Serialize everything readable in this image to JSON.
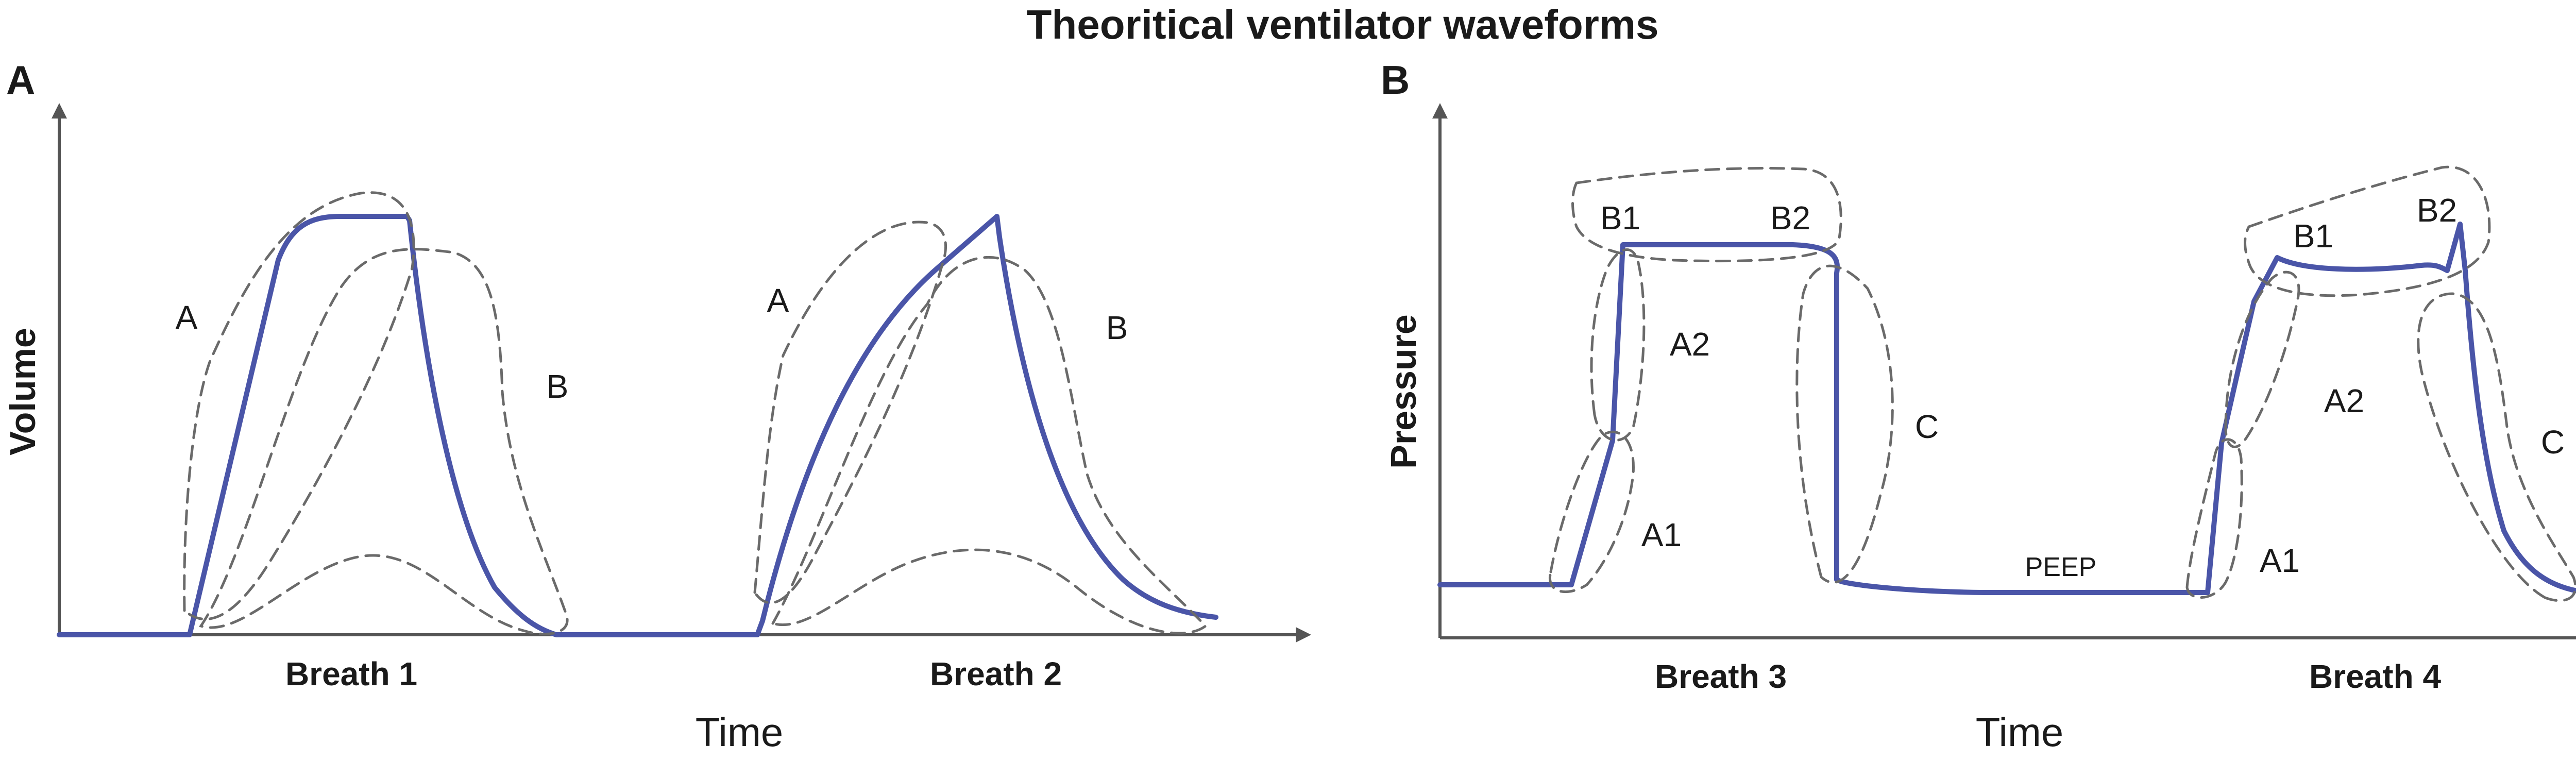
{
  "title": "Theoritical ventilator waveforms",
  "colors": {
    "waveform": "#4a55a8",
    "outline": "#6a6a6a",
    "axis": "#555555"
  },
  "panels": [
    {
      "letter": "A",
      "y_label": "Volume",
      "x_label": "Time",
      "breaths": [
        "Breath 1",
        "Breath 2"
      ],
      "regions": [
        "A",
        "B",
        "A",
        "B"
      ]
    },
    {
      "letter": "B",
      "y_label": "Pressure",
      "x_label": "Time",
      "breaths": [
        "Breath 3",
        "Breath 4"
      ],
      "regions": [
        "B1",
        "B2",
        "A2",
        "A1",
        "C",
        "B1",
        "B2",
        "A2",
        "A1",
        "C"
      ],
      "baseline_label": "PEEP"
    }
  ]
}
